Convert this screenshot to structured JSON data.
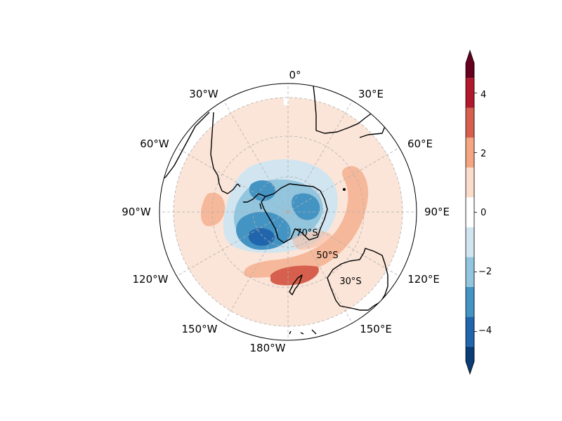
{
  "map": {
    "projection": "south-polar-stereographic",
    "longitude_labels": [
      "0°",
      "30°E",
      "60°E",
      "90°E",
      "120°E",
      "150°E",
      "180°W",
      "150°W",
      "120°W",
      "90°W",
      "60°W",
      "30°W"
    ],
    "latitude_labels": [
      "70°S",
      "50°S",
      "30°S"
    ],
    "gridlines": "dashed"
  },
  "colorbar": {
    "ticks": [
      "−4",
      "−2",
      "0",
      "2",
      "4"
    ],
    "levels": [
      -5,
      -4.5,
      -3.5,
      -2.5,
      -1.5,
      -0.5,
      0.5,
      1.5,
      2.5,
      3.5,
      4.5,
      5
    ],
    "colors": [
      "#0a3d78",
      "#2166ac",
      "#4393c3",
      "#92c5de",
      "#d1e5f0",
      "#ffffff",
      "#fadccb",
      "#f4a582",
      "#d6604d",
      "#b2182b",
      "#67001f"
    ],
    "extend": "both",
    "cmap": "RdBu_r"
  }
}
